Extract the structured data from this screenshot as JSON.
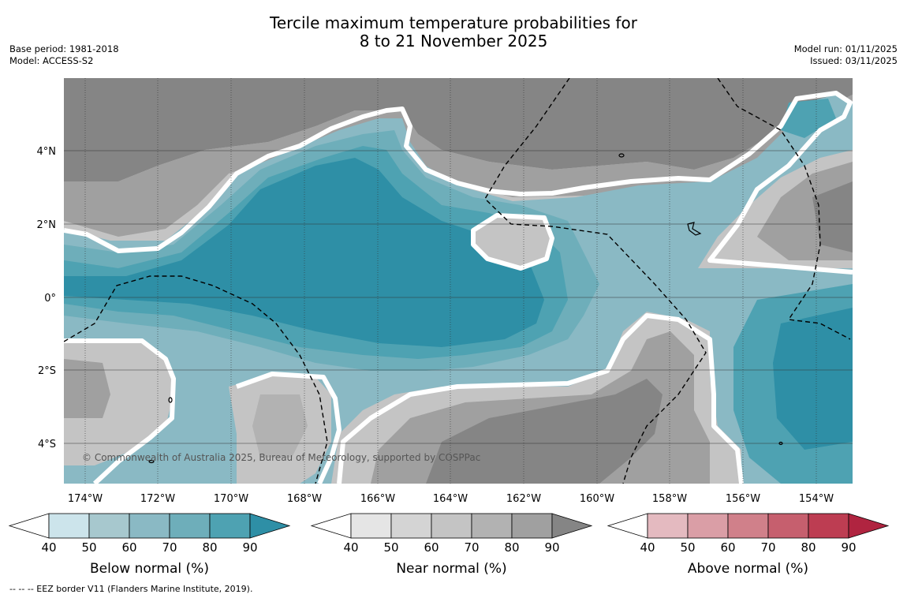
{
  "title_line1": "Tercile maximum temperature probabilities for",
  "title_line2": "8 to 21 November 2025",
  "base_period": "Base period: 1981-2018",
  "model": "Model: ACCESS-S2",
  "model_run": "Model run: 01/11/2025",
  "issued": "Issued: 03/11/2025",
  "copyright": "© Commonwealth of Australia 2025, Bureau of Meteorology, supported by COSPPac",
  "footer": "-- -- -- EEZ border V11 (Flanders Marine Institute, 2019).",
  "map": {
    "lon_range": [
      -174.6,
      -152.9
    ],
    "lat_range": [
      -5.2,
      5.9
    ],
    "lon_ticks": [
      "174°W",
      "172°W",
      "170°W",
      "168°W",
      "166°W",
      "164°W",
      "162°W",
      "160°W",
      "158°W",
      "156°W",
      "154°W"
    ],
    "lat_ticks": [
      "4°N",
      "2°N",
      "0°",
      "2°S",
      "4°S"
    ]
  },
  "colorbars": [
    {
      "label": "Below normal (%)",
      "ticks": [
        "40",
        "50",
        "60",
        "70",
        "80",
        "90"
      ],
      "colors": [
        "#ffffff",
        "#cce4eb",
        "#a7c8ce",
        "#8ab9c4",
        "#6eaeba",
        "#4ea2b2",
        "#2e8fa6"
      ]
    },
    {
      "label": "Near normal (%)",
      "ticks": [
        "40",
        "50",
        "60",
        "70",
        "80",
        "90"
      ],
      "colors": [
        "#ffffff",
        "#e5e5e5",
        "#d4d4d4",
        "#c4c4c4",
        "#b2b2b2",
        "#a0a0a0",
        "#858585"
      ]
    },
    {
      "label": "Above normal (%)",
      "ticks": [
        "40",
        "50",
        "60",
        "70",
        "80",
        "90"
      ],
      "colors": [
        "#ffffff",
        "#e4bac0",
        "#da9ea6",
        "#d0808a",
        "#c65f6e",
        "#bd3d52",
        "#b02440"
      ]
    }
  ]
}
